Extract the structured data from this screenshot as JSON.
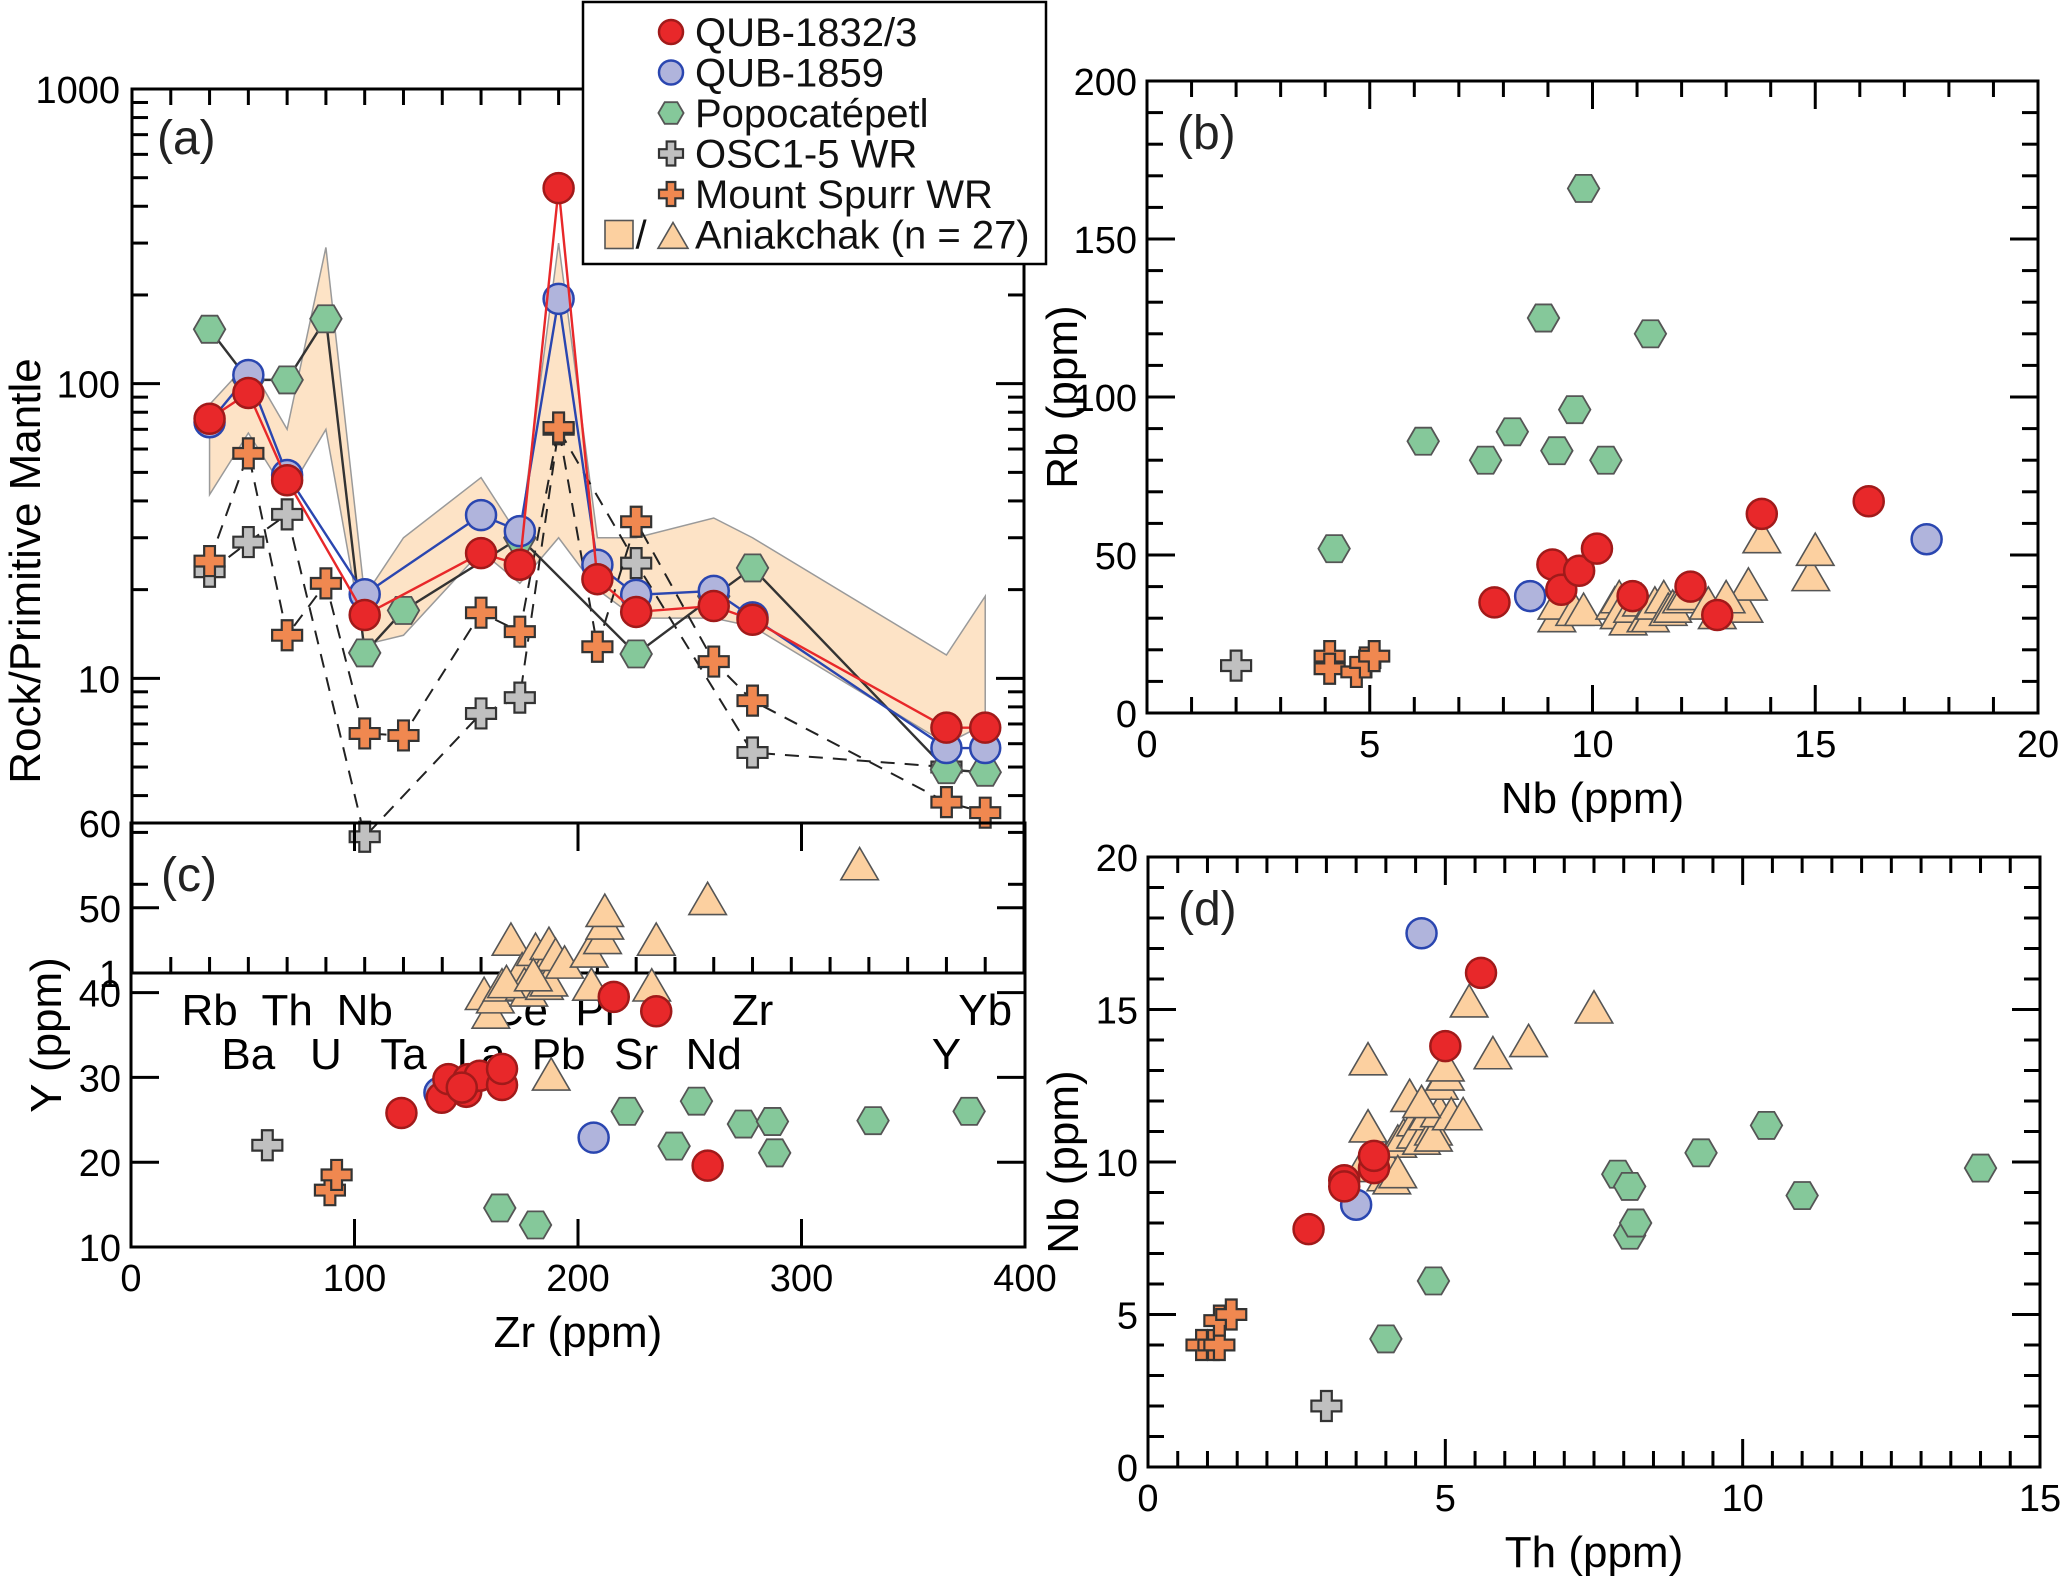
{
  "legend": {
    "entries": [
      {
        "label": "QUB-1832/3",
        "marker": "circle",
        "color": "#e8282a",
        "stroke": "#a11a1a"
      },
      {
        "label": "QUB-1859",
        "marker": "circle",
        "color": "#b0b4dc",
        "stroke": "#2a46b0"
      },
      {
        "label": "Popocatépetl",
        "marker": "hexagon",
        "color": "#85c89a",
        "stroke": "#555555"
      },
      {
        "label": "OSC1-5 WR",
        "marker": "cross",
        "color": "#c0c0c0",
        "stroke": "#333333"
      },
      {
        "label": "Mount Spurr WR",
        "marker": "cross",
        "color": "#f08850",
        "stroke": "#333333"
      },
      {
        "label": "Aniakchak (n = 27)",
        "marker": "square-triangle",
        "color": "#fcd0a0",
        "stroke": "#555555",
        "separator": "/"
      }
    ]
  },
  "chart_data": [
    {
      "panel": "(a)",
      "type": "line",
      "yscale": "log",
      "ylabel": "Rock/Primitive Mantle",
      "xlabel": "",
      "ylim": [
        1,
        1000
      ],
      "yticks": [
        "1",
        "10",
        "100",
        "1000"
      ],
      "categories": [
        "Rb",
        "Ba",
        "Th",
        "U",
        "Nb",
        "Ta",
        "",
        "La",
        "Ce",
        "Pb",
        "Pr",
        "Sr",
        "",
        "Nd",
        "Zr",
        "",
        "",
        "",
        "",
        "Y",
        "Yb"
      ],
      "category_label_rows": {
        "top": [
          "Rb",
          "Th",
          "Nb",
          "Ce",
          "Pr",
          "Zr",
          "Yb"
        ],
        "bottom": [
          "Ba",
          "U",
          "Ta",
          "La",
          "Pb",
          "Sr",
          "Nd",
          "Y"
        ]
      },
      "band": {
        "name": "Aniakchak (n = 27)",
        "upper": {
          "Rb": 85,
          "Ba": 118,
          "Th": 70,
          "U": 290,
          "Nb": 19,
          "Ta": 30,
          "La": 48,
          "Ce": 30,
          "Pb": 300,
          "Pr": 30,
          "Sr": 30,
          "Nd": 35,
          "Zr": 30,
          "Y": 12,
          "Yb": 19
        },
        "lower": {
          "Rb": 42,
          "Ba": 68,
          "Th": 42,
          "U": 70,
          "Nb": 13,
          "Ta": 14,
          "La": 27,
          "Ce": 21,
          "Pb": 30,
          "Pr": 20,
          "Sr": 16,
          "Nd": 16,
          "Zr": 15,
          "Y": 6,
          "Yb": 7
        }
      },
      "series": [
        {
          "name": "QUB-1832/3",
          "line": "solid",
          "line_color": "#e8282a",
          "values": {
            "Rb": 76,
            "Ba": 93,
            "Th": 47,
            "Nb": 16.4,
            "La": 26.6,
            "Ce": 24.3,
            "Pb": 461,
            "Pr": 21.7,
            "Sr": 16.8,
            "Nd": 17.6,
            "Zr": 15.8,
            "Y": 6.8,
            "Yb": 6.8
          }
        },
        {
          "name": "QUB-1859",
          "line": "solid",
          "line_color": "#2a46b0",
          "values": {
            "Rb": 74,
            "Ba": 107,
            "Th": 49,
            "Nb": 19.3,
            "La": 35.8,
            "Ce": 31.6,
            "Pb": 194,
            "Pr": 24.3,
            "Sr": 19.2,
            "Nd": 19.8,
            "Zr": 16.1,
            "Y": 5.8,
            "Yb": 5.8
          }
        },
        {
          "name": "Popocatépetl",
          "line": "solid",
          "line_color": "#333333",
          "values": {
            "Rb": 153,
            "Ba": 103,
            "Th": 103,
            "U": 166,
            "Nb": 12.2,
            "Ta": 17,
            "Ce": 30,
            "Sr": 12.1,
            "Nd": 19,
            "Zr": 23.7,
            "Y": 4.9,
            "Yb": 4.8
          }
        },
        {
          "name": "OSC1-5 WR",
          "line": "dashed",
          "line_color": "#222222",
          "values": {
            "Rb": 23,
            "Ba": 29,
            "Th": 36,
            "Nb": 2.9,
            "La": 7.6,
            "Ce": 8.6,
            "Pb": 70,
            "Sr": 24.6,
            "Zr": 5.6,
            "Y": 5.0
          }
        },
        {
          "name": "Mount Spurr WR",
          "line": "dashed",
          "line_color": "#222222",
          "values": {
            "Rb": 25,
            "Ba": 58,
            "Th": 14,
            "U": 21,
            "Nb": 6.5,
            "Ta": 6.4,
            "La": 16.7,
            "Ce": 14.4,
            "Pb": 71,
            "Pr": 12.8,
            "Sr": 34,
            "Nd": 11.4,
            "Zr": 8.4,
            "Y": 3.8,
            "Yb": 3.5
          }
        }
      ]
    },
    {
      "panel": "(b)",
      "type": "scatter",
      "xlabel": "Nb (ppm)",
      "ylabel": "Rb (ppm)",
      "xlim": [
        0,
        20
      ],
      "ylim": [
        0,
        200
      ],
      "xticks": [
        "0",
        "5",
        "10",
        "15",
        "20"
      ],
      "yticks": [
        "0",
        "50",
        "100",
        "150",
        "200"
      ],
      "series": [
        {
          "name": "QUB-1832/3",
          "points": [
            [
              7.8,
              35
            ],
            [
              9.1,
              47
            ],
            [
              9.3,
              39
            ],
            [
              9.7,
              45
            ],
            [
              10.1,
              52
            ],
            [
              10.9,
              37
            ],
            [
              12.2,
              40
            ],
            [
              12.8,
              31
            ],
            [
              13.8,
              63
            ],
            [
              16.2,
              67
            ]
          ]
        },
        {
          "name": "QUB-1859",
          "points": [
            [
              8.6,
              37
            ],
            [
              17.5,
              55
            ]
          ]
        },
        {
          "name": "Popocatépetl",
          "points": [
            [
              4.2,
              52
            ],
            [
              6.2,
              86
            ],
            [
              7.6,
              80
            ],
            [
              8.2,
              89
            ],
            [
              8.9,
              125
            ],
            [
              9.2,
              83
            ],
            [
              9.6,
              96
            ],
            [
              9.8,
              166
            ],
            [
              10.3,
              80
            ],
            [
              11.3,
              120
            ]
          ]
        },
        {
          "name": "OSC1-5 WR",
          "points": [
            [
              2.0,
              15
            ]
          ]
        },
        {
          "name": "Mount Spurr WR",
          "points": [
            [
              4.1,
              18
            ],
            [
              4.1,
              14
            ],
            [
              4.7,
              13
            ],
            [
              4.9,
              16
            ],
            [
              5.1,
              18
            ]
          ]
        },
        {
          "name": "Aniakchak (n = 27)",
          "points": [
            [
              9.2,
              30
            ],
            [
              9.2,
              34
            ],
            [
              9.6,
              32
            ],
            [
              9.8,
              32
            ],
            [
              10.5,
              34
            ],
            [
              10.6,
              36
            ],
            [
              10.6,
              31
            ],
            [
              10.8,
              29
            ],
            [
              10.9,
              33
            ],
            [
              11.1,
              35
            ],
            [
              11.2,
              30
            ],
            [
              11.3,
              30
            ],
            [
              11.4,
              34
            ],
            [
              11.6,
              36
            ],
            [
              11.7,
              32
            ],
            [
              11.8,
              33
            ],
            [
              12.0,
              36
            ],
            [
              12.1,
              37
            ],
            [
              12.6,
              34
            ],
            [
              12.8,
              31
            ],
            [
              13.1,
              33
            ],
            [
              13.4,
              33
            ],
            [
              13.5,
              40
            ],
            [
              13.8,
              55
            ],
            [
              14.9,
              43
            ],
            [
              15.0,
              51
            ],
            [
              13.0,
              36
            ]
          ]
        }
      ]
    },
    {
      "panel": "(c)",
      "type": "scatter",
      "xlabel": "Zr (ppm)",
      "ylabel": "Y (ppm)",
      "xlim": [
        0,
        400
      ],
      "ylim": [
        10,
        60
      ],
      "xticks": [
        "0",
        "100",
        "200",
        "300",
        "400"
      ],
      "yticks": [
        "10",
        "20",
        "30",
        "40",
        "50",
        "60"
      ],
      "series": [
        {
          "name": "QUB-1832/3",
          "points": [
            [
              121,
              25.8
            ],
            [
              139,
              27.6
            ],
            [
              142,
              29.8
            ],
            [
              150,
              28.3
            ],
            [
              151,
              29.8
            ],
            [
              156,
              30.2
            ],
            [
              166,
              29.1
            ],
            [
              166,
              31.0
            ],
            [
              216,
              39.5
            ],
            [
              235,
              37.8
            ],
            [
              258,
              19.6
            ],
            [
              148,
              28.8
            ]
          ]
        },
        {
          "name": "QUB-1859",
          "points": [
            [
              138,
              28.2
            ],
            [
              207,
              22.9
            ]
          ]
        },
        {
          "name": "Popocatépetl",
          "points": [
            [
              165,
              14.6
            ],
            [
              181,
              12.6
            ],
            [
              222,
              26.0
            ],
            [
              243,
              21.9
            ],
            [
              253,
              27.2
            ],
            [
              274,
              24.5
            ],
            [
              287,
              24.8
            ],
            [
              288,
              21.1
            ],
            [
              332,
              24.9
            ],
            [
              375,
              26.0
            ]
          ]
        },
        {
          "name": "OSC1-5 WR",
          "points": [
            [
              61,
              22.0
            ]
          ]
        },
        {
          "name": "Mount Spurr WR",
          "points": [
            [
              89,
              16.7
            ],
            [
              92,
              18.5
            ]
          ]
        },
        {
          "name": "Aniakchak (n = 27)",
          "points": [
            [
              161,
              37.4
            ],
            [
              158,
              39.6
            ],
            [
              163,
              39.2
            ],
            [
              166,
              40.6
            ],
            [
              170,
              46.0
            ],
            [
              175,
              42.5
            ],
            [
              176,
              40.7
            ],
            [
              178,
              40.0
            ],
            [
              181,
              44.8
            ],
            [
              184,
              42.3
            ],
            [
              185,
              40.8
            ],
            [
              187,
              41.2
            ],
            [
              187,
              45.5
            ],
            [
              190,
              44.2
            ],
            [
              194,
              43.3
            ],
            [
              188,
              30.1
            ],
            [
              205,
              44.6
            ],
            [
              206,
              40.7
            ],
            [
              211,
              46.2
            ],
            [
              212,
              47.9
            ],
            [
              212,
              49.4
            ],
            [
              233,
              40.6
            ],
            [
              235,
              46.0
            ],
            [
              258,
              50.8
            ],
            [
              326,
              54.9
            ],
            [
              168,
              41.0
            ],
            [
              180,
              41.8
            ]
          ]
        }
      ]
    },
    {
      "panel": "(d)",
      "type": "scatter",
      "xlabel": "Th (ppm)",
      "ylabel": "Nb (ppm)",
      "xlim": [
        0,
        15
      ],
      "ylim": [
        0,
        20
      ],
      "xticks": [
        "0",
        "5",
        "10",
        "15"
      ],
      "yticks": [
        "0",
        "5",
        "10",
        "15",
        "20"
      ],
      "series": [
        {
          "name": "QUB-1832/3",
          "points": [
            [
              2.7,
              7.8
            ],
            [
              3.3,
              9.4
            ],
            [
              3.3,
              9.2
            ],
            [
              3.8,
              9.8
            ],
            [
              3.8,
              10.2
            ],
            [
              5.0,
              13.8
            ],
            [
              5.6,
              16.2
            ]
          ]
        },
        {
          "name": "QUB-1859",
          "points": [
            [
              3.5,
              8.6
            ],
            [
              4.6,
              17.5
            ]
          ]
        },
        {
          "name": "Popocatépetl",
          "points": [
            [
              4.0,
              4.2
            ],
            [
              4.8,
              6.1
            ],
            [
              7.9,
              9.6
            ],
            [
              8.1,
              9.2
            ],
            [
              8.1,
              7.6
            ],
            [
              8.2,
              8.0
            ],
            [
              9.3,
              10.3
            ],
            [
              10.4,
              11.2
            ],
            [
              11.0,
              8.9
            ],
            [
              14.0,
              9.8
            ]
          ]
        },
        {
          "name": "OSC1-5 WR",
          "points": [
            [
              3.0,
              2.0
            ]
          ]
        },
        {
          "name": "Mount Spurr WR",
          "points": [
            [
              0.9,
              4.0
            ],
            [
              1.1,
              4.0
            ],
            [
              1.2,
              4.0
            ],
            [
              1.2,
              4.8
            ],
            [
              1.4,
              5.0
            ]
          ]
        },
        {
          "name": "Aniakchak (n = 27)",
          "points": [
            [
              3.6,
              9.8
            ],
            [
              3.7,
              11.1
            ],
            [
              3.7,
              13.3
            ],
            [
              4.0,
              9.5
            ],
            [
              4.1,
              9.4
            ],
            [
              4.0,
              10.0
            ],
            [
              4.2,
              10.6
            ],
            [
              4.3,
              10.8
            ],
            [
              4.4,
              12.1
            ],
            [
              4.5,
              11.3
            ],
            [
              4.5,
              10.9
            ],
            [
              4.6,
              10.7
            ],
            [
              4.7,
              11.5
            ],
            [
              4.8,
              11.0
            ],
            [
              4.8,
              10.8
            ],
            [
              4.9,
              11.6
            ],
            [
              4.9,
              12.5
            ],
            [
              5.0,
              12.8
            ],
            [
              5.0,
              13.1
            ],
            [
              5.1,
              11.5
            ],
            [
              5.3,
              11.5
            ],
            [
              5.4,
              15.2
            ],
            [
              5.8,
              13.5
            ],
            [
              6.4,
              13.9
            ],
            [
              7.5,
              15.0
            ],
            [
              4.2,
              9.6
            ],
            [
              4.6,
              11.9
            ]
          ]
        }
      ]
    }
  ]
}
